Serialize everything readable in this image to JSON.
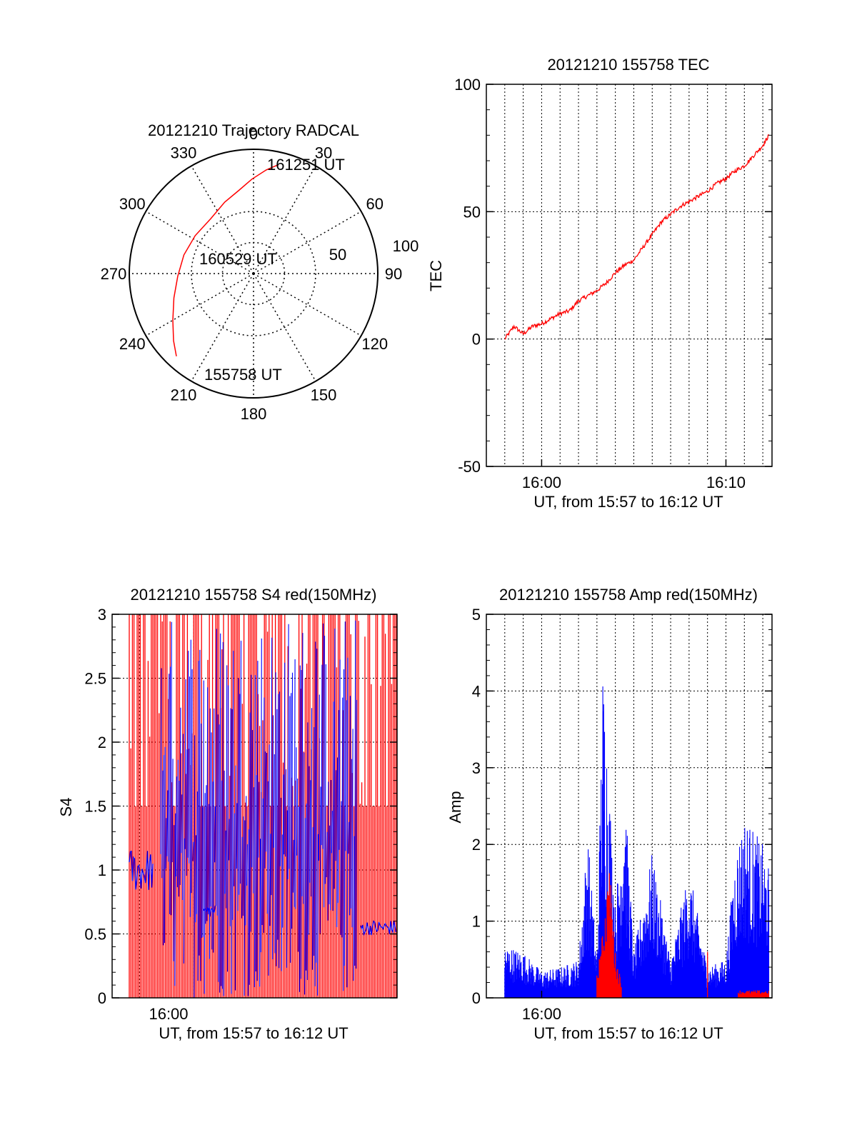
{
  "chart_data": [
    {
      "type": "polar",
      "title": "20121210 Trajectory RADCAL",
      "azimuth_labels": [
        "0",
        "30",
        "60",
        "90",
        "120",
        "150",
        "180",
        "210",
        "240",
        "270",
        "300",
        "330"
      ],
      "radius_labels": [
        "50",
        "100"
      ],
      "rlim": [
        0,
        100
      ],
      "grid": true,
      "series": [
        {
          "color": "#ff0000",
          "points": [
            {
              "az": 13,
              "r": 90
            },
            {
              "az": 7,
              "r": 84
            },
            {
              "az": 359,
              "r": 76
            },
            {
              "az": 350,
              "r": 68
            },
            {
              "az": 338,
              "r": 62
            },
            {
              "az": 322,
              "r": 56
            },
            {
              "az": 303,
              "r": 56
            },
            {
              "az": 285,
              "r": 58
            },
            {
              "az": 268,
              "r": 61
            },
            {
              "az": 253,
              "r": 67
            },
            {
              "az": 240,
              "r": 75
            },
            {
              "az": 230,
              "r": 84
            },
            {
              "az": 223,
              "r": 91
            }
          ]
        }
      ],
      "annotations": [
        {
          "text": "161251 UT",
          "az": 18,
          "r": 94
        },
        {
          "text": "160529 UT",
          "az": 300,
          "r": 32
        },
        {
          "text": "155758 UT",
          "az": 210,
          "r": 86
        }
      ]
    },
    {
      "type": "line",
      "title": "20121210 155758 TEC",
      "xlabel": "UT, from 15:57 to 16:12 UT",
      "ylabel": "TEC",
      "xlim": [
        "15:57:00",
        "16:12:30"
      ],
      "ylim": [
        -50,
        100
      ],
      "xticks": [
        "16:00",
        "16:10"
      ],
      "yticks": [
        "-50",
        "0",
        "50",
        "100"
      ],
      "grid": true,
      "series": [
        {
          "color": "#ff0000",
          "x": [
            "15:58:00",
            "15:58:30",
            "15:59:00",
            "15:59:30",
            "16:00:00",
            "16:00:30",
            "16:01:00",
            "16:01:30",
            "16:02:00",
            "16:02:30",
            "16:03:00",
            "16:03:30",
            "16:04:00",
            "16:04:30",
            "16:05:00",
            "16:05:30",
            "16:06:00",
            "16:06:30",
            "16:07:00",
            "16:07:30",
            "16:08:00",
            "16:08:30",
            "16:09:00",
            "16:09:30",
            "16:10:00",
            "16:10:30",
            "16:11:00",
            "16:11:30",
            "16:12:00",
            "16:12:20"
          ],
          "y": [
            0,
            5,
            2,
            5,
            6,
            8,
            10,
            11,
            15,
            17,
            19,
            22,
            26,
            29,
            31,
            36,
            41,
            46,
            49,
            52,
            54,
            56,
            58,
            61,
            63,
            66,
            68,
            72,
            76,
            80
          ]
        }
      ]
    },
    {
      "type": "line",
      "title": "20121210 155758 S4 red(150MHz)",
      "xlabel": "UT, from 15:57 to 16:12 UT",
      "ylabel": "S4",
      "xlim": [
        "15:59:00",
        "16:02:30"
      ],
      "ylim": [
        0,
        3
      ],
      "xticks": [
        "16:00"
      ],
      "yticks": [
        "0",
        "0.5",
        "1",
        "1.5",
        "2",
        "2.5",
        "3"
      ],
      "grid": true,
      "series": [
        {
          "color": "#ff0000",
          "description_values": "rapid oscillation between 0 and 3 with a plateau near 1.5"
        },
        {
          "color": "#0000ff",
          "description_values": "S4 near 1.0 early, dense region 0-3 later, near 0.55 at end"
        }
      ]
    },
    {
      "type": "line",
      "title": "20121210 155758 Amp red(150MHz)",
      "xlabel": "UT, from 15:57 to 16:12 UT",
      "ylabel": "Amp",
      "xlim": [
        "15:57:00",
        "16:12:30"
      ],
      "ylim": [
        0,
        5
      ],
      "xticks": [
        "16:00"
      ],
      "yticks": [
        "0",
        "1",
        "2",
        "3",
        "4",
        "5"
      ],
      "grid": true,
      "series": [
        {
          "color": "#0000ff",
          "x": [
            "15:58:00",
            "15:59:00",
            "16:00:00",
            "16:01:00",
            "16:02:00",
            "16:02:30",
            "16:03:00",
            "16:03:20",
            "16:04:00",
            "16:04:30",
            "16:05:00",
            "16:06:00",
            "16:07:00",
            "16:08:00",
            "16:09:00",
            "16:10:00",
            "16:10:30",
            "16:11:00",
            "16:12:00",
            "16:12:20"
          ],
          "y": [
            0.7,
            0.6,
            0.35,
            0.4,
            0.5,
            2.2,
            0.5,
            4.5,
            1.2,
            2.8,
            0.6,
            1.9,
            0.5,
            1.7,
            0.4,
            0.5,
            1.9,
            2.4,
            2.0,
            1.7
          ]
        },
        {
          "color": "#ff0000",
          "x": [
            "16:03:00",
            "16:03:20",
            "16:03:40",
            "16:04:00",
            "16:04:20",
            "16:09:00",
            "16:11:00",
            "16:12:00"
          ],
          "y": [
            0.3,
            0.9,
            1.8,
            0.6,
            0.2,
            0.6,
            0.05,
            0.08
          ]
        }
      ]
    }
  ]
}
